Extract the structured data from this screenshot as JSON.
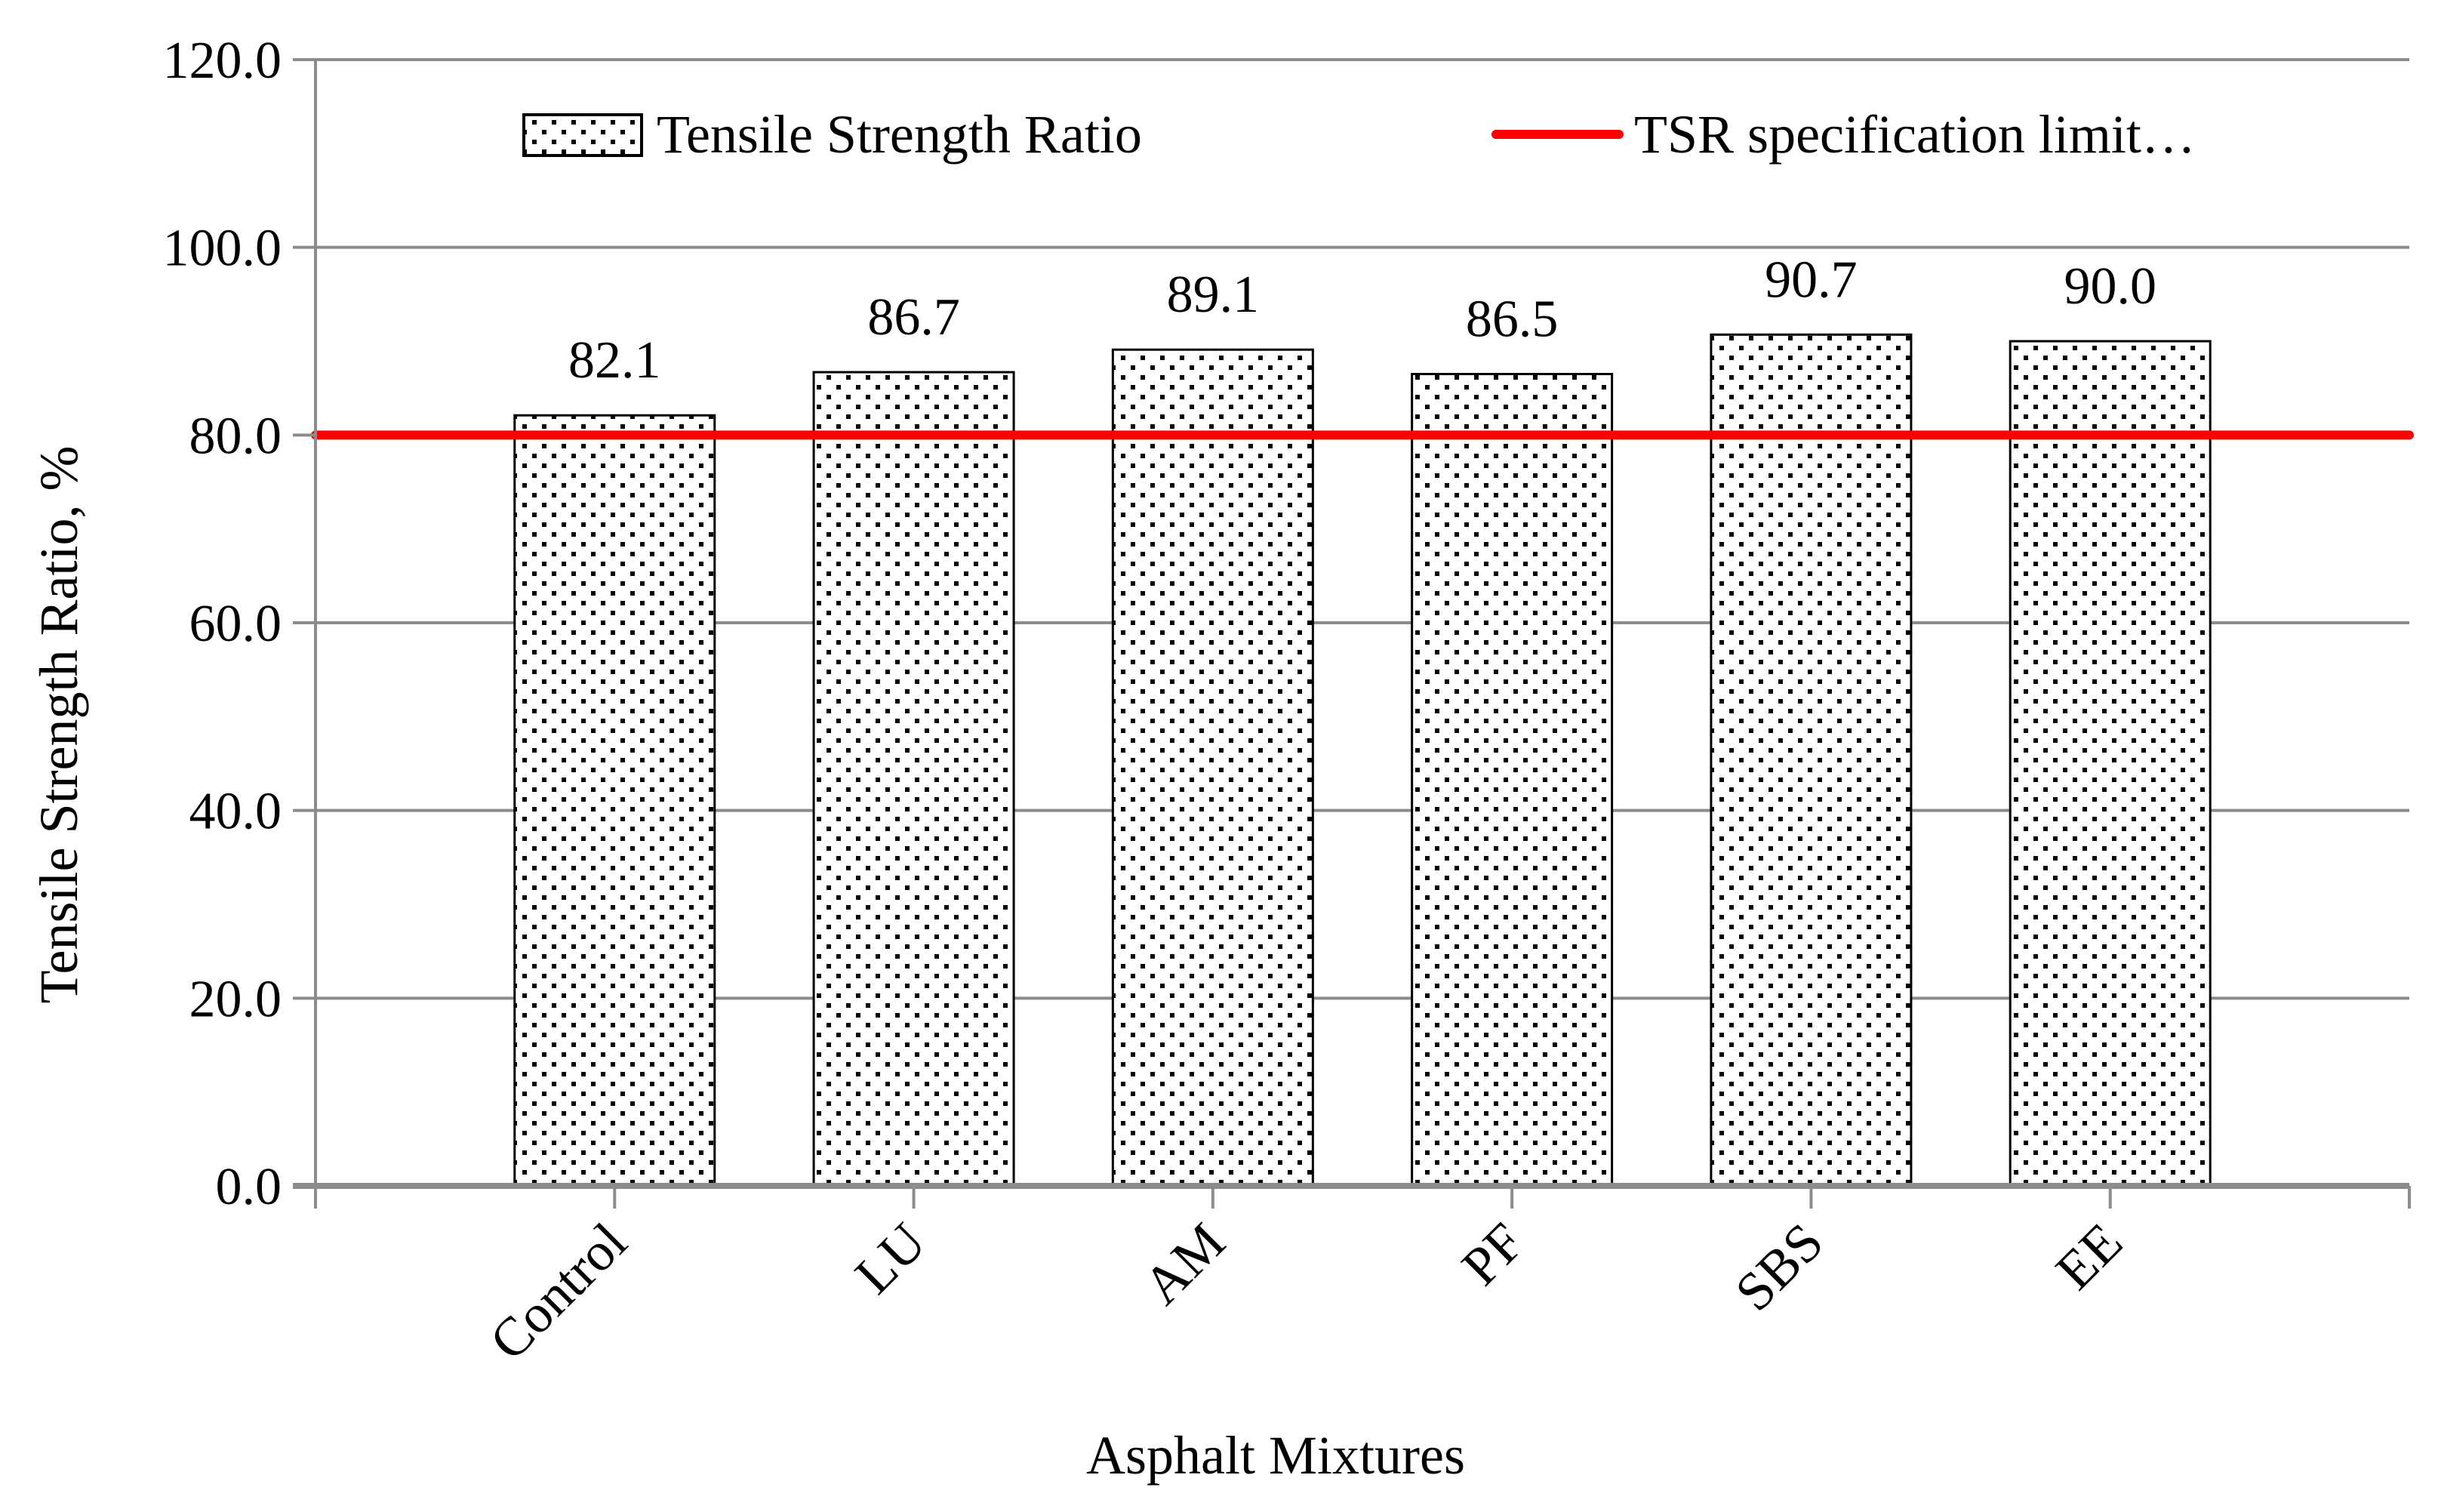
{
  "chart_data": {
    "type": "bar",
    "title": "",
    "xlabel": "Asphalt Mixtures",
    "ylabel": "Tensile Strength Ratio, %",
    "categories": [
      "Control",
      "LU",
      "AM",
      "PF",
      "SBS",
      "EE"
    ],
    "series": [
      {
        "name": "Tensile Strength Ratio",
        "values": [
          82.1,
          86.7,
          89.1,
          86.5,
          90.7,
          90.0
        ],
        "labels": [
          "82.1",
          "86.7",
          "89.1",
          "86.5",
          "90.7",
          "90.0"
        ],
        "fill": "dotted-pattern"
      }
    ],
    "reference_line": {
      "name": "TSR specification limit…",
      "value": 80.0,
      "color": "#ff0000"
    },
    "ylim": [
      0,
      120
    ],
    "yticks": [
      "0.0",
      "20.0",
      "40.0",
      "60.0",
      "80.0",
      "100.0",
      "120.0"
    ],
    "grid": true,
    "legend_position": "top"
  }
}
